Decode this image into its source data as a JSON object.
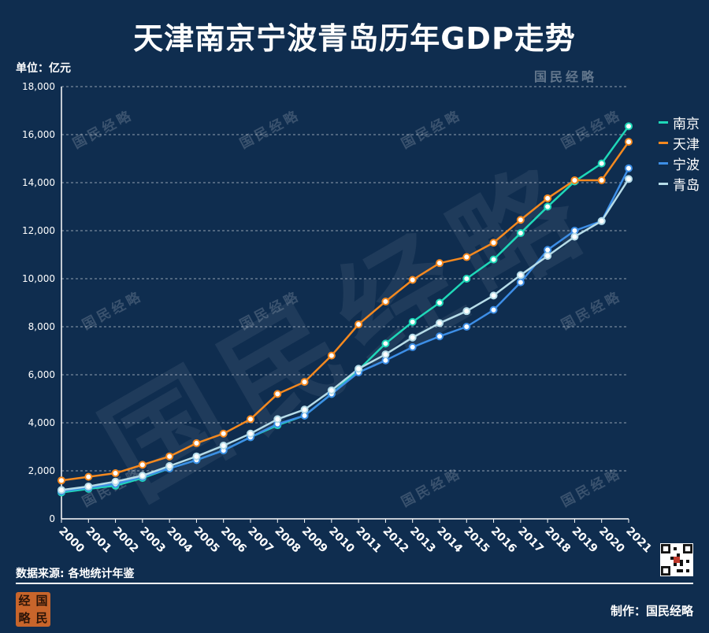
{
  "title": "天津南京宁波青岛历年GDP走势",
  "unit_label": "单位：亿元",
  "source_label": "数据来源: 各地统计年鉴",
  "credit_label": "制作：国民经略",
  "watermark_text": "国民经略",
  "logo_chars": [
    "经",
    "国",
    "略",
    "民"
  ],
  "chart_data": {
    "type": "line",
    "title": "天津南京宁波青岛历年GDP走势",
    "ylabel": "单位：亿元",
    "xlabel": "",
    "ylim": [
      0,
      18000
    ],
    "grid": true,
    "legend_position": "right",
    "x": [
      "2000",
      "2001",
      "2002",
      "2003",
      "2004",
      "2005",
      "2006",
      "2007",
      "2008",
      "2009",
      "2010",
      "2011",
      "2012",
      "2013",
      "2014",
      "2015",
      "2016",
      "2017",
      "2018",
      "2019",
      "2020",
      "2021"
    ],
    "yticks": [
      0,
      2000,
      4000,
      6000,
      8000,
      10000,
      12000,
      14000,
      16000,
      18000
    ],
    "ytick_labels": [
      "0",
      "2,000",
      "4,000",
      "6,000",
      "8,000",
      "10,000",
      "12,000",
      "14,000",
      "16,000",
      "18,000"
    ],
    "series": [
      {
        "name": "南京",
        "color": "#1fd8b8",
        "values": [
          1100,
          1250,
          1380,
          1700,
          2100,
          2450,
          2850,
          3400,
          3900,
          4300,
          5200,
          6200,
          7300,
          8200,
          9000,
          10000,
          10800,
          11900,
          13000,
          14050,
          14800,
          16350
        ]
      },
      {
        "name": "天津",
        "color": "#f5891f",
        "values": [
          1600,
          1750,
          1900,
          2250,
          2600,
          3150,
          3550,
          4150,
          5200,
          5700,
          6800,
          8100,
          9050,
          9950,
          10650,
          10900,
          11500,
          12450,
          13350,
          14100,
          14100,
          15700
        ]
      },
      {
        "name": "宁波",
        "color": "#3d8ee6",
        "values": [
          1150,
          1300,
          1450,
          1750,
          2100,
          2450,
          2850,
          3400,
          3950,
          4300,
          5200,
          6100,
          6600,
          7150,
          7600,
          8000,
          8700,
          9850,
          11200,
          12000,
          12400,
          14600
        ]
      },
      {
        "name": "青岛",
        "color": "#b6dce8",
        "values": [
          1200,
          1350,
          1550,
          1800,
          2200,
          2600,
          3050,
          3550,
          4150,
          4550,
          5350,
          6250,
          6850,
          7550,
          8150,
          8650,
          9300,
          10150,
          10950,
          11750,
          12400,
          14150
        ]
      }
    ]
  }
}
